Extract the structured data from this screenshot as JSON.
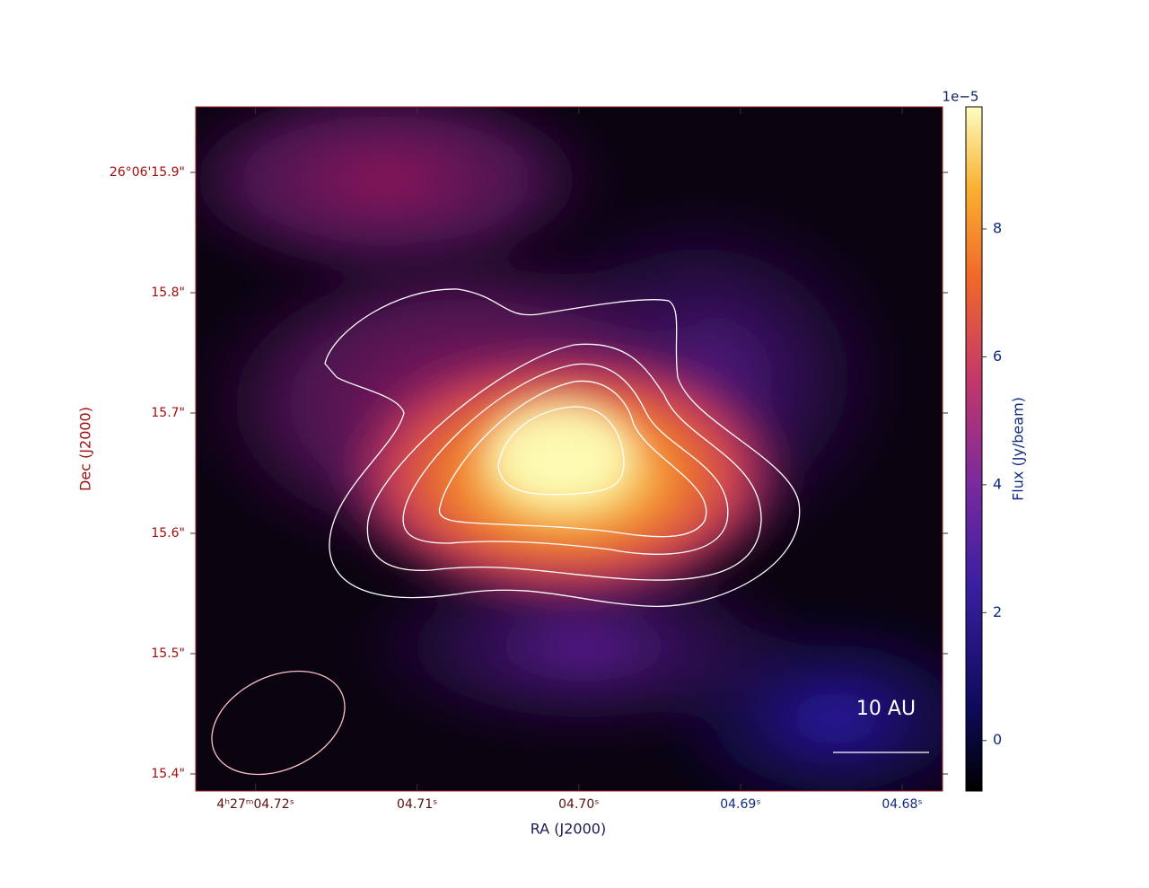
{
  "chart_data": {
    "type": "image",
    "xlabel": "RA (J2000)",
    "ylabel": "Dec (J2000)",
    "xlim": [
      4.7237,
      4.6775
    ],
    "xticks": [
      {
        "value": 4.72,
        "label": "4ʰ27ᵐ04.72ˢ"
      },
      {
        "value": 4.71,
        "label": "04.71ˢ"
      },
      {
        "value": 4.7,
        "label": "04.70ˢ"
      },
      {
        "value": 4.69,
        "label": "04.69ˢ"
      },
      {
        "value": 4.68,
        "label": "04.68ˢ"
      }
    ],
    "ylim": [
      15.3858,
      15.9545
    ],
    "yticks": [
      {
        "value": 15.9,
        "label": "26°06'15.9\""
      },
      {
        "value": 15.8,
        "label": "15.8\""
      },
      {
        "value": 15.7,
        "label": "15.7\""
      },
      {
        "value": 15.6,
        "label": "15.6\""
      },
      {
        "value": 15.5,
        "label": "15.5\""
      },
      {
        "value": 15.4,
        "label": "15.4\""
      }
    ],
    "colorbar": {
      "label": "Flux (Jy/beam)",
      "offset_text": "1e−5",
      "clim": [
        -0.79,
        9.91
      ],
      "ticks": [
        0,
        2,
        4,
        6,
        8
      ]
    },
    "annotations": [
      "10 AU"
    ]
  }
}
